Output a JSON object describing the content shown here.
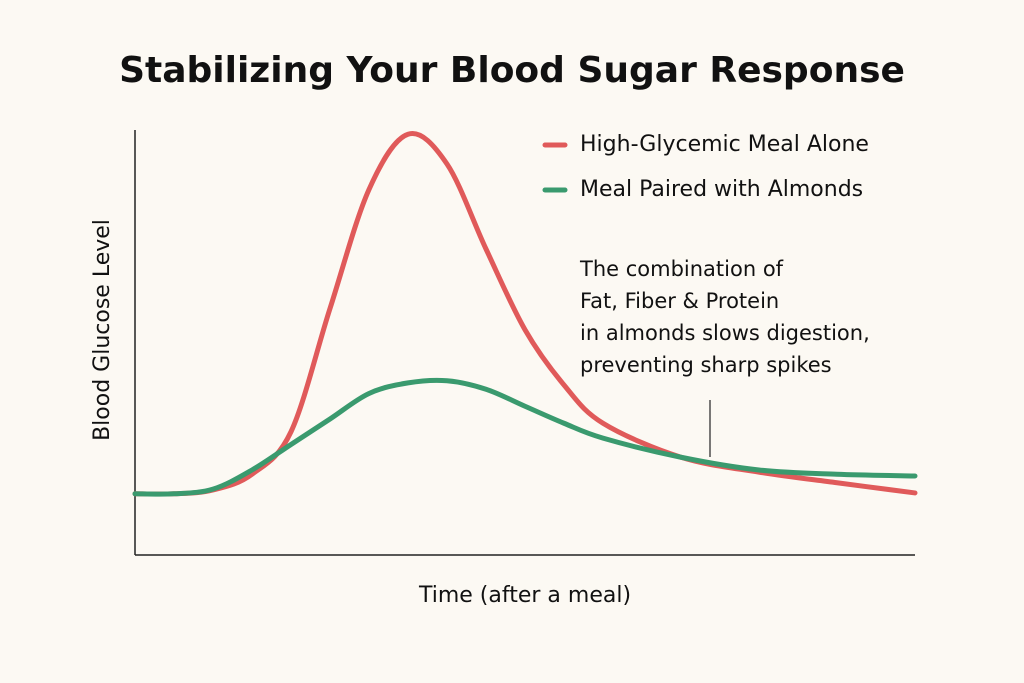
{
  "chart_data": {
    "type": "line",
    "title": "Stabilizing Your Blood Sugar Response",
    "x_label": "Time (after a meal)",
    "y_label": "Blood Glucose Level",
    "x": [
      0,
      0.5,
      1,
      1.5,
      2,
      2.5,
      3,
      3.5,
      4,
      4.5,
      5,
      5.5,
      6,
      7,
      8,
      9,
      10
    ],
    "xlim": [
      0,
      10
    ],
    "ylim": [
      0,
      100
    ],
    "series": [
      {
        "name": "High-Glycemic Meal Alone",
        "color": "#e05a5a",
        "values": [
          14.4,
          14.4,
          15.3,
          19,
          29,
          58,
          86,
          99,
          92,
          72,
          53,
          40,
          31,
          23,
          19.5,
          17,
          14.6
        ]
      },
      {
        "name": "Meal Paired with Almonds",
        "color": "#3a9a6e",
        "values": [
          14.4,
          14.4,
          15.5,
          20,
          26,
          32,
          38,
          40.5,
          41,
          39,
          35,
          31,
          27.5,
          23,
          20,
          19,
          18.6
        ]
      }
    ],
    "annotation": [
      "The combination of",
      "Fat, Fiber & Protein",
      "in almonds slows digestion,",
      "preventing sharp spikes"
    ]
  }
}
